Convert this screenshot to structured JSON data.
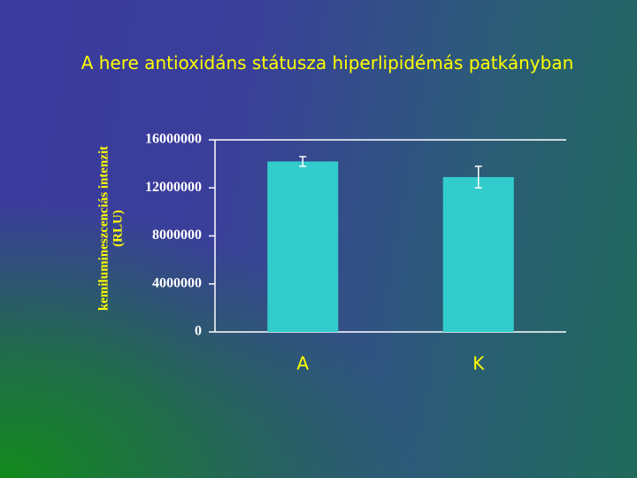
{
  "chart_data": {
    "type": "bar",
    "title": "A here antioxidáns státusza hiperlipidémás patkányban",
    "y_label": [
      "kemilumineszcenciás intenzit",
      "(RLU)"
    ],
    "categories": [
      "A",
      "K"
    ],
    "values": [
      14200000,
      12900000
    ],
    "errors": [
      400000,
      900000
    ],
    "color": "#33cccc",
    "ylim": [
      0,
      16000000
    ],
    "yticks": [
      0,
      4000000,
      8000000,
      12000000,
      16000000
    ]
  }
}
